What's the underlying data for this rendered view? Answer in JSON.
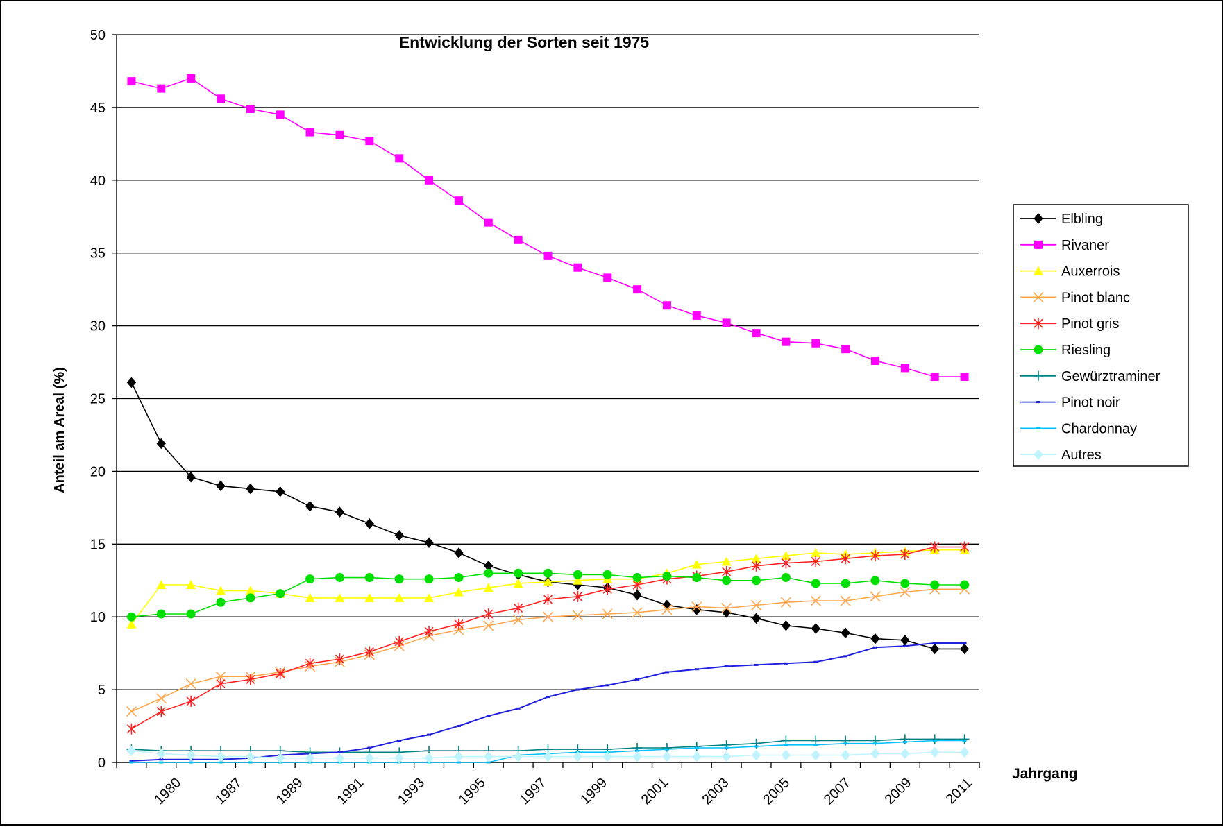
{
  "chart_data": {
    "type": "line",
    "title": "Entwicklung der Sorten seit 1975",
    "xlabel": "Jahrgang",
    "ylabel": "Anteil am Areal (%)",
    "ylim": [
      0,
      50
    ],
    "yticks": [
      0,
      5,
      10,
      15,
      20,
      25,
      30,
      35,
      40,
      45,
      50
    ],
    "grid": "horizontal",
    "legend_position": "right",
    "x_tick_labels": [
      "1980",
      "1987",
      "1989",
      "1991",
      "1993",
      "1995",
      "1997",
      "1999",
      "2001",
      "2003",
      "2005",
      "2007",
      "2009",
      "2011"
    ],
    "n_points": 29,
    "series": [
      {
        "name": "Elbling",
        "color": "#000000",
        "marker": "diamond",
        "values": [
          26.1,
          21.9,
          19.6,
          19.0,
          18.8,
          18.6,
          17.6,
          17.2,
          16.4,
          15.6,
          15.1,
          14.4,
          13.5,
          12.9,
          12.4,
          12.2,
          12.0,
          11.5,
          10.8,
          10.5,
          10.3,
          9.9,
          9.4,
          9.2,
          8.9,
          8.5,
          8.4,
          7.8,
          7.8
        ]
      },
      {
        "name": "Rivaner",
        "color": "#ff00ff",
        "marker": "square",
        "values": [
          46.8,
          46.3,
          47.0,
          45.6,
          44.9,
          44.5,
          43.3,
          43.1,
          42.7,
          41.5,
          40.0,
          38.6,
          37.1,
          35.9,
          34.8,
          34.0,
          33.3,
          32.5,
          31.4,
          30.7,
          30.2,
          29.5,
          28.9,
          28.8,
          28.4,
          27.6,
          27.1,
          26.5,
          26.5
        ]
      },
      {
        "name": "Auxerrois",
        "color": "#ffff00",
        "marker": "triangle",
        "values": [
          9.5,
          12.2,
          12.2,
          11.8,
          11.8,
          11.6,
          11.3,
          11.3,
          11.3,
          11.3,
          11.3,
          11.7,
          12.0,
          12.3,
          12.4,
          12.5,
          12.6,
          12.6,
          13.0,
          13.6,
          13.8,
          14.0,
          14.2,
          14.4,
          14.3,
          14.4,
          14.5,
          14.6,
          14.6
        ]
      },
      {
        "name": "Pinot blanc",
        "color": "#ffa64d",
        "marker": "x",
        "values": [
          3.5,
          4.4,
          5.4,
          5.9,
          5.9,
          6.2,
          6.6,
          6.9,
          7.4,
          8.0,
          8.7,
          9.1,
          9.4,
          9.8,
          10.0,
          10.1,
          10.2,
          10.3,
          10.5,
          10.7,
          10.6,
          10.8,
          11.0,
          11.1,
          11.1,
          11.4,
          11.7,
          11.9,
          11.9
        ]
      },
      {
        "name": "Pinot gris",
        "color": "#ff2222",
        "marker": "star",
        "values": [
          2.3,
          3.5,
          4.2,
          5.4,
          5.7,
          6.1,
          6.8,
          7.1,
          7.6,
          8.3,
          9.0,
          9.5,
          10.2,
          10.6,
          11.2,
          11.4,
          11.9,
          12.2,
          12.6,
          12.8,
          13.1,
          13.5,
          13.7,
          13.8,
          14.0,
          14.2,
          14.3,
          14.8,
          14.8
        ]
      },
      {
        "name": "Riesling",
        "color": "#00e000",
        "marker": "circle",
        "values": [
          10.0,
          10.2,
          10.2,
          11.0,
          11.3,
          11.6,
          12.6,
          12.7,
          12.7,
          12.6,
          12.6,
          12.7,
          13.0,
          13.0,
          13.0,
          12.9,
          12.9,
          12.7,
          12.8,
          12.7,
          12.5,
          12.5,
          12.7,
          12.3,
          12.3,
          12.5,
          12.3,
          12.2,
          12.2
        ]
      },
      {
        "name": "Gewürztraminer",
        "color": "#008080",
        "marker": "plus",
        "values": [
          0.9,
          0.8,
          0.8,
          0.8,
          0.8,
          0.8,
          0.7,
          0.7,
          0.7,
          0.7,
          0.8,
          0.8,
          0.8,
          0.8,
          0.9,
          0.9,
          0.9,
          1.0,
          1.0,
          1.1,
          1.2,
          1.3,
          1.5,
          1.5,
          1.5,
          1.5,
          1.6,
          1.6,
          1.6
        ]
      },
      {
        "name": "Pinot noir",
        "color": "#2020dd",
        "marker": "dash",
        "values": [
          0.1,
          0.2,
          0.2,
          0.2,
          0.3,
          0.5,
          0.6,
          0.7,
          1.0,
          1.5,
          1.9,
          2.5,
          3.2,
          3.7,
          4.5,
          5.0,
          5.3,
          5.7,
          6.2,
          6.4,
          6.6,
          6.7,
          6.8,
          6.9,
          7.3,
          7.9,
          8.0,
          8.2,
          8.2
        ]
      },
      {
        "name": "Chardonnay",
        "color": "#00bfff",
        "marker": "dash",
        "values": [
          0.0,
          0.0,
          0.0,
          0.0,
          0.0,
          0.0,
          0.0,
          0.0,
          0.0,
          0.0,
          0.0,
          0.0,
          0.0,
          0.5,
          0.6,
          0.7,
          0.7,
          0.8,
          0.9,
          1.0,
          1.0,
          1.1,
          1.2,
          1.2,
          1.3,
          1.3,
          1.4,
          1.5,
          1.5
        ]
      },
      {
        "name": "Autres",
        "color": "#bff4ff",
        "marker": "diamond",
        "values": [
          0.8,
          0.6,
          0.5,
          0.4,
          0.4,
          0.3,
          0.3,
          0.3,
          0.3,
          0.3,
          0.3,
          0.4,
          0.4,
          0.4,
          0.4,
          0.4,
          0.4,
          0.4,
          0.4,
          0.4,
          0.4,
          0.5,
          0.5,
          0.5,
          0.5,
          0.6,
          0.6,
          0.7,
          0.7
        ]
      }
    ]
  }
}
